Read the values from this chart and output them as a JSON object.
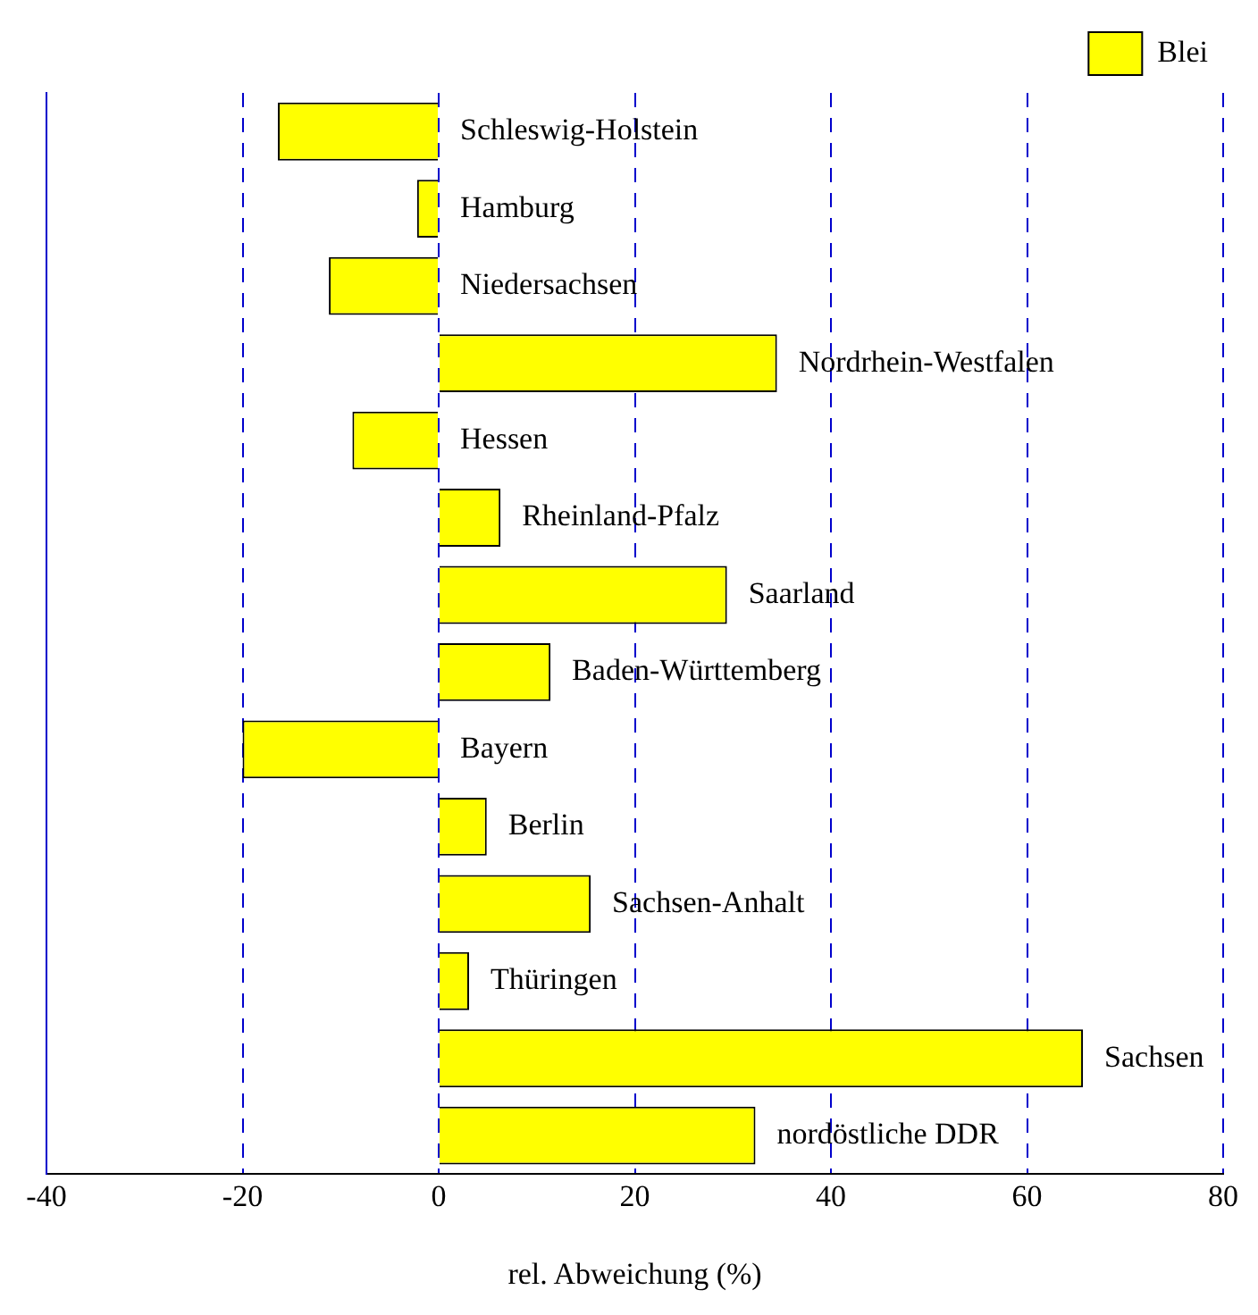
{
  "chart_data": {
    "type": "bar",
    "orientation": "horizontal",
    "xlabel": "rel. Abweichung (%)",
    "categories": [
      "Schleswig-Holstein",
      "Hamburg",
      "Niedersachsen",
      "Nordrhein-Westfalen",
      "Hessen",
      "Rheinland-Pfalz",
      "Saarland",
      "Baden-Württemberg",
      "Bayern",
      "Berlin",
      "Sachsen-Anhalt",
      "Thüringen",
      "Sachsen",
      "nordöstliche DDR"
    ],
    "series": [
      {
        "name": "Blei",
        "color": "#ffff00",
        "values": [
          -16.4,
          -2.2,
          -11.2,
          34.5,
          -8.8,
          6.3,
          29.4,
          11.4,
          -20,
          4.9,
          15.5,
          3.1,
          65.7,
          32.3
        ]
      }
    ],
    "xlim": [
      -40,
      80
    ],
    "xticks": [
      -40,
      -20,
      0,
      20,
      40,
      60,
      80
    ],
    "grid": "x",
    "legend": "top right",
    "tick_labels": "x"
  }
}
